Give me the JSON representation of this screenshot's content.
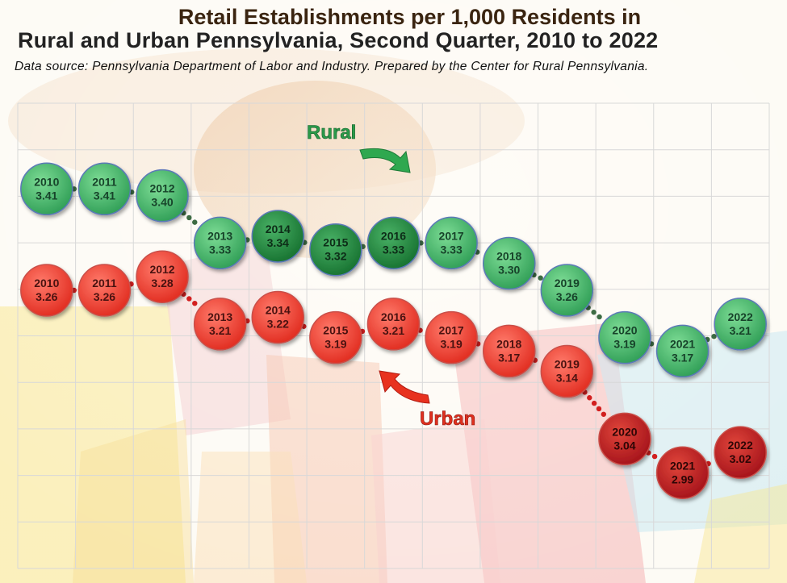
{
  "header": {
    "title_line1": "Retail Establishments per 1,000 Residents in",
    "title_line2": "Rural and Urban Pennsylvania, Second Quarter, 2010 to 2022",
    "source": "Data source: Pennsylvania Department of Labor and Industry. Prepared by the Center for Rural Pennsylvania."
  },
  "chart_data": {
    "type": "line",
    "title": "Retail Establishments per 1,000 Residents in Rural and Urban Pennsylvania, Second Quarter, 2010 to 2022",
    "x": [
      "2010",
      "2011",
      "2012",
      "2013",
      "2014",
      "2015",
      "2016",
      "2017",
      "2018",
      "2019",
      "2020",
      "2021",
      "2022"
    ],
    "grid": true,
    "series": [
      {
        "name": "Rural",
        "values": [
          3.41,
          3.41,
          3.4,
          3.33,
          3.34,
          3.32,
          3.33,
          3.33,
          3.3,
          3.26,
          3.19,
          3.17,
          3.21
        ],
        "labels": [
          "3.41",
          "3.41",
          "3.40",
          "3.33",
          "3.34",
          "3.32",
          "3.33",
          "3.33",
          "3.30",
          "3.26",
          "3.19",
          "3.17",
          "3.21"
        ],
        "color": "#3fb56a",
        "dark_color": "#1f8a3e"
      },
      {
        "name": "Urban",
        "values": [
          3.26,
          3.26,
          3.28,
          3.21,
          3.22,
          3.19,
          3.21,
          3.19,
          3.17,
          3.14,
          3.04,
          2.99,
          3.02
        ],
        "labels": [
          "3.26",
          "3.26",
          "3.28",
          "3.21",
          "3.22",
          "3.19",
          "3.21",
          "3.19",
          "3.17",
          "3.14",
          "3.04",
          "2.99",
          "3.02"
        ],
        "color": "#ef3b2c",
        "dark_color": "#c41f1f"
      }
    ]
  }
}
